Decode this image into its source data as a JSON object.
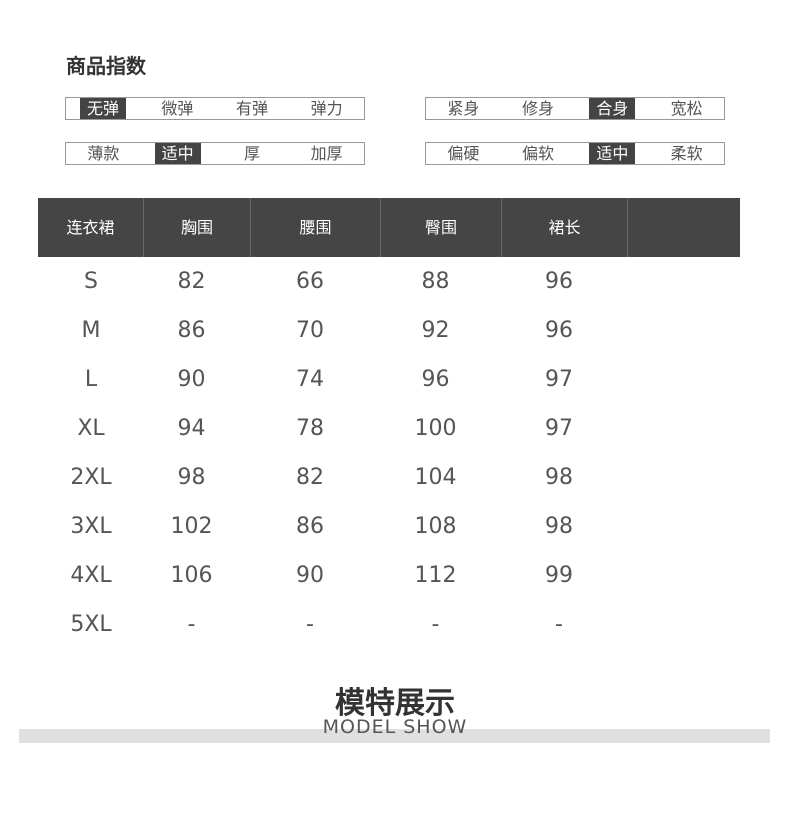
{
  "title": "商品指数",
  "indices": [
    {
      "options": [
        "无弹",
        "微弹",
        "有弹",
        "弹力"
      ],
      "selected": 0
    },
    {
      "options": [
        "紧身",
        "修身",
        "合身",
        "宽松"
      ],
      "selected": 2
    },
    {
      "options": [
        "薄款",
        "适中",
        "厚",
        "加厚"
      ],
      "selected": 1
    },
    {
      "options": [
        "偏硬",
        "偏软",
        "适中",
        "柔软"
      ],
      "selected": 2
    }
  ],
  "table": {
    "headers": [
      "连衣裙",
      "胸围",
      "腰围",
      "臀围",
      "裙长",
      ""
    ],
    "rows": [
      [
        "S",
        "82",
        "66",
        "88",
        "96"
      ],
      [
        "M",
        "86",
        "70",
        "92",
        "96"
      ],
      [
        "L",
        "90",
        "74",
        "96",
        "97"
      ],
      [
        "XL",
        "94",
        "78",
        "100",
        "97"
      ],
      [
        "2XL",
        "98",
        "82",
        "104",
        "98"
      ],
      [
        "3XL",
        "102",
        "86",
        "108",
        "98"
      ],
      [
        "4XL",
        "106",
        "90",
        "112",
        "99"
      ],
      [
        "5XL",
        "-",
        "-",
        "-",
        "-"
      ]
    ]
  },
  "section": {
    "title": "模特展示",
    "subtitle": "MODEL SHOW"
  }
}
